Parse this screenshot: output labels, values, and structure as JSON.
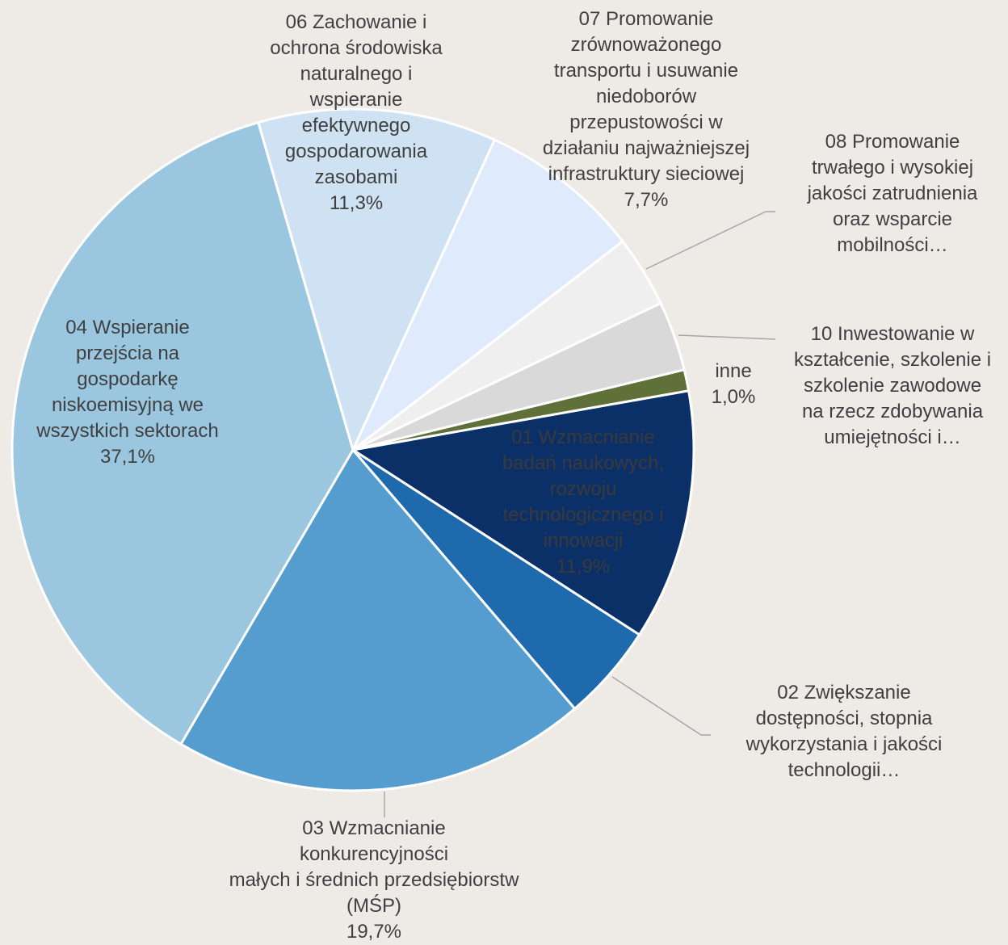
{
  "chart_data": {
    "type": "pie",
    "categories": [
      "01 Wzmacnianie\nbadań naukowych,\nrozwoju\ntechnologicznego i\ninnowacji",
      "02 Zwiększanie\ndostępności, stopnia\nwykorzystania i jakości\ntechnologii…",
      "03 Wzmacnianie konkurencyjności\nmałych i średnich przedsiębiorstw\n(MŚP)",
      "04 Wspieranie\nprzejścia na\ngospodarkę\nniskoemisyjną we\nwszystkich sektorach",
      "06 Zachowanie i\nochrona środowiska\nnaturalnego i\nwspieranie\nefektywnego\ngospodarowania\nzasobami",
      "07 Promowanie\nzrównoważonego\ntransportu i usuwanie\nniedoborów\nprzepustowości w\ndziałaniu najważniejszej\ninfrastruktury sieciowej",
      "08 Promowanie\ntrwałego i wysokiej\njakości zatrudnienia\noraz wsparcie\nmobilności…",
      "10 Inwestowanie w\nkształcenie, szkolenie i\nszkolenie zawodowe\nna rzecz zdobywania\numiejętności i…",
      "inne"
    ],
    "values": [
      11.9,
      4.6,
      19.7,
      37.1,
      11.3,
      7.7,
      3.4,
      3.3,
      1.0
    ],
    "value_labels": [
      "11,9%",
      null,
      "19,7%",
      "37,1%",
      "11,3%",
      "7,7%",
      null,
      null,
      "1,0%"
    ],
    "colors": [
      "#0b3068",
      "#1e6aad",
      "#559dcf",
      "#9ac6e0",
      "#cfe2f3",
      "#dfeafc",
      "#efefef",
      "#d9d9d9",
      "#5f7038"
    ]
  }
}
